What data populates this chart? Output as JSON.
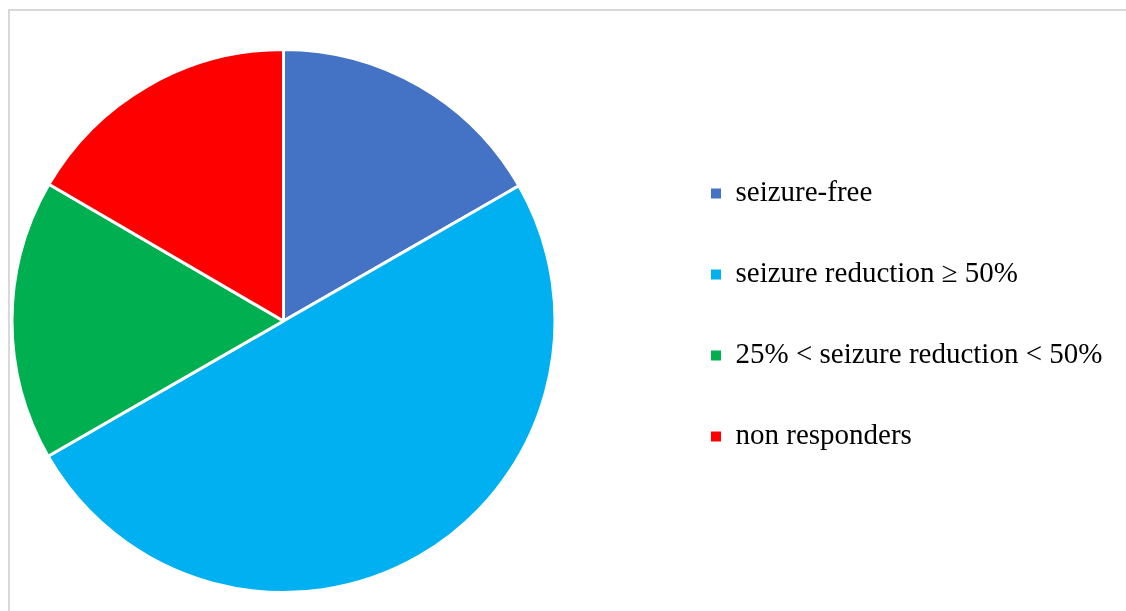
{
  "chart_data": {
    "type": "pie",
    "categories": [
      "seizure-free",
      "seizure reduction ≥ 50%",
      "25% < seizure reduction < 50%",
      "non responders"
    ],
    "values": [
      16.7,
      50,
      16.7,
      16.6
    ],
    "colors": [
      "#4472c4",
      "#00b0f0",
      "#00b050",
      "#ff0000"
    ],
    "legend": "right"
  }
}
